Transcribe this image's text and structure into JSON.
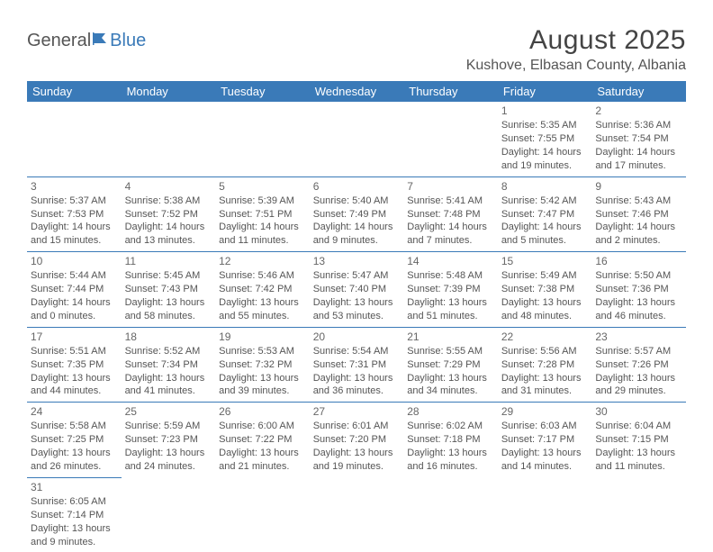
{
  "brand": {
    "part1": "General",
    "part2": "Blue"
  },
  "title": "August 2025",
  "location": "Kushove, Elbasan County, Albania",
  "colors": {
    "header_bg": "#3a7ab8",
    "header_text": "#ffffff",
    "border": "#3a7ab8",
    "body_text": "#555555",
    "title_text": "#444444"
  },
  "columns": [
    "Sunday",
    "Monday",
    "Tuesday",
    "Wednesday",
    "Thursday",
    "Friday",
    "Saturday"
  ],
  "weeks": [
    [
      null,
      null,
      null,
      null,
      null,
      {
        "n": "1",
        "sr": "Sunrise: 5:35 AM",
        "ss": "Sunset: 7:55 PM",
        "d1": "Daylight: 14 hours",
        "d2": "and 19 minutes."
      },
      {
        "n": "2",
        "sr": "Sunrise: 5:36 AM",
        "ss": "Sunset: 7:54 PM",
        "d1": "Daylight: 14 hours",
        "d2": "and 17 minutes."
      }
    ],
    [
      {
        "n": "3",
        "sr": "Sunrise: 5:37 AM",
        "ss": "Sunset: 7:53 PM",
        "d1": "Daylight: 14 hours",
        "d2": "and 15 minutes."
      },
      {
        "n": "4",
        "sr": "Sunrise: 5:38 AM",
        "ss": "Sunset: 7:52 PM",
        "d1": "Daylight: 14 hours",
        "d2": "and 13 minutes."
      },
      {
        "n": "5",
        "sr": "Sunrise: 5:39 AM",
        "ss": "Sunset: 7:51 PM",
        "d1": "Daylight: 14 hours",
        "d2": "and 11 minutes."
      },
      {
        "n": "6",
        "sr": "Sunrise: 5:40 AM",
        "ss": "Sunset: 7:49 PM",
        "d1": "Daylight: 14 hours",
        "d2": "and 9 minutes."
      },
      {
        "n": "7",
        "sr": "Sunrise: 5:41 AM",
        "ss": "Sunset: 7:48 PM",
        "d1": "Daylight: 14 hours",
        "d2": "and 7 minutes."
      },
      {
        "n": "8",
        "sr": "Sunrise: 5:42 AM",
        "ss": "Sunset: 7:47 PM",
        "d1": "Daylight: 14 hours",
        "d2": "and 5 minutes."
      },
      {
        "n": "9",
        "sr": "Sunrise: 5:43 AM",
        "ss": "Sunset: 7:46 PM",
        "d1": "Daylight: 14 hours",
        "d2": "and 2 minutes."
      }
    ],
    [
      {
        "n": "10",
        "sr": "Sunrise: 5:44 AM",
        "ss": "Sunset: 7:44 PM",
        "d1": "Daylight: 14 hours",
        "d2": "and 0 minutes."
      },
      {
        "n": "11",
        "sr": "Sunrise: 5:45 AM",
        "ss": "Sunset: 7:43 PM",
        "d1": "Daylight: 13 hours",
        "d2": "and 58 minutes."
      },
      {
        "n": "12",
        "sr": "Sunrise: 5:46 AM",
        "ss": "Sunset: 7:42 PM",
        "d1": "Daylight: 13 hours",
        "d2": "and 55 minutes."
      },
      {
        "n": "13",
        "sr": "Sunrise: 5:47 AM",
        "ss": "Sunset: 7:40 PM",
        "d1": "Daylight: 13 hours",
        "d2": "and 53 minutes."
      },
      {
        "n": "14",
        "sr": "Sunrise: 5:48 AM",
        "ss": "Sunset: 7:39 PM",
        "d1": "Daylight: 13 hours",
        "d2": "and 51 minutes."
      },
      {
        "n": "15",
        "sr": "Sunrise: 5:49 AM",
        "ss": "Sunset: 7:38 PM",
        "d1": "Daylight: 13 hours",
        "d2": "and 48 minutes."
      },
      {
        "n": "16",
        "sr": "Sunrise: 5:50 AM",
        "ss": "Sunset: 7:36 PM",
        "d1": "Daylight: 13 hours",
        "d2": "and 46 minutes."
      }
    ],
    [
      {
        "n": "17",
        "sr": "Sunrise: 5:51 AM",
        "ss": "Sunset: 7:35 PM",
        "d1": "Daylight: 13 hours",
        "d2": "and 44 minutes."
      },
      {
        "n": "18",
        "sr": "Sunrise: 5:52 AM",
        "ss": "Sunset: 7:34 PM",
        "d1": "Daylight: 13 hours",
        "d2": "and 41 minutes."
      },
      {
        "n": "19",
        "sr": "Sunrise: 5:53 AM",
        "ss": "Sunset: 7:32 PM",
        "d1": "Daylight: 13 hours",
        "d2": "and 39 minutes."
      },
      {
        "n": "20",
        "sr": "Sunrise: 5:54 AM",
        "ss": "Sunset: 7:31 PM",
        "d1": "Daylight: 13 hours",
        "d2": "and 36 minutes."
      },
      {
        "n": "21",
        "sr": "Sunrise: 5:55 AM",
        "ss": "Sunset: 7:29 PM",
        "d1": "Daylight: 13 hours",
        "d2": "and 34 minutes."
      },
      {
        "n": "22",
        "sr": "Sunrise: 5:56 AM",
        "ss": "Sunset: 7:28 PM",
        "d1": "Daylight: 13 hours",
        "d2": "and 31 minutes."
      },
      {
        "n": "23",
        "sr": "Sunrise: 5:57 AM",
        "ss": "Sunset: 7:26 PM",
        "d1": "Daylight: 13 hours",
        "d2": "and 29 minutes."
      }
    ],
    [
      {
        "n": "24",
        "sr": "Sunrise: 5:58 AM",
        "ss": "Sunset: 7:25 PM",
        "d1": "Daylight: 13 hours",
        "d2": "and 26 minutes."
      },
      {
        "n": "25",
        "sr": "Sunrise: 5:59 AM",
        "ss": "Sunset: 7:23 PM",
        "d1": "Daylight: 13 hours",
        "d2": "and 24 minutes."
      },
      {
        "n": "26",
        "sr": "Sunrise: 6:00 AM",
        "ss": "Sunset: 7:22 PM",
        "d1": "Daylight: 13 hours",
        "d2": "and 21 minutes."
      },
      {
        "n": "27",
        "sr": "Sunrise: 6:01 AM",
        "ss": "Sunset: 7:20 PM",
        "d1": "Daylight: 13 hours",
        "d2": "and 19 minutes."
      },
      {
        "n": "28",
        "sr": "Sunrise: 6:02 AM",
        "ss": "Sunset: 7:18 PM",
        "d1": "Daylight: 13 hours",
        "d2": "and 16 minutes."
      },
      {
        "n": "29",
        "sr": "Sunrise: 6:03 AM",
        "ss": "Sunset: 7:17 PM",
        "d1": "Daylight: 13 hours",
        "d2": "and 14 minutes."
      },
      {
        "n": "30",
        "sr": "Sunrise: 6:04 AM",
        "ss": "Sunset: 7:15 PM",
        "d1": "Daylight: 13 hours",
        "d2": "and 11 minutes."
      }
    ],
    [
      {
        "n": "31",
        "sr": "Sunrise: 6:05 AM",
        "ss": "Sunset: 7:14 PM",
        "d1": "Daylight: 13 hours",
        "d2": "and 9 minutes."
      },
      null,
      null,
      null,
      null,
      null,
      null
    ]
  ]
}
